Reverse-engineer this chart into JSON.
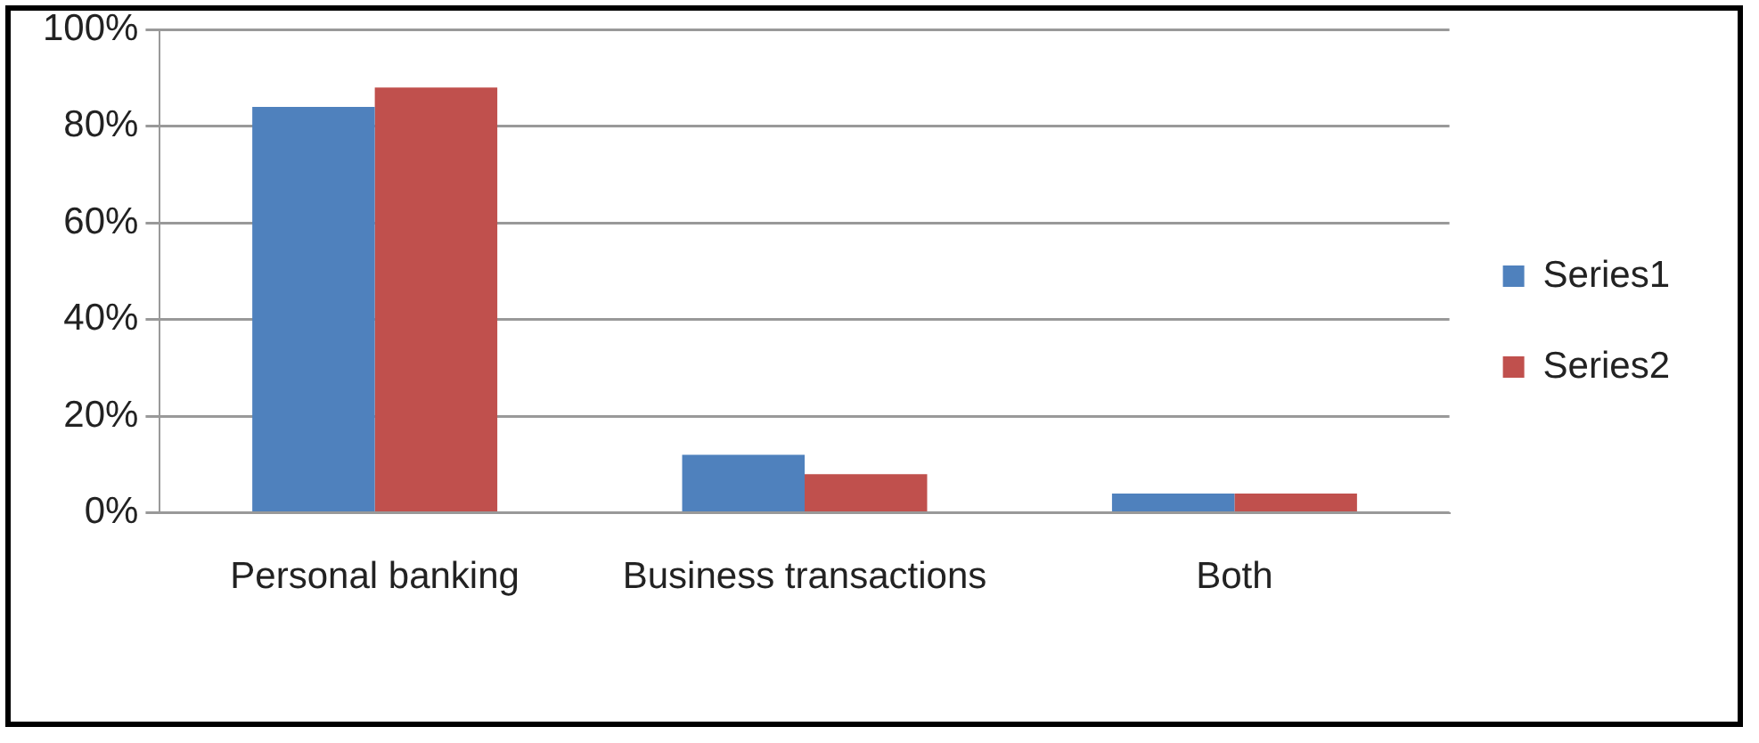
{
  "chart_data": {
    "type": "bar",
    "categories": [
      "Personal banking",
      "Business transactions",
      "Both"
    ],
    "series": [
      {
        "name": "Series1",
        "color": "#4f81bd",
        "values": [
          84,
          12,
          4
        ]
      },
      {
        "name": "Series2",
        "color": "#c0504d",
        "values": [
          88,
          8,
          4
        ]
      }
    ],
    "ylim": [
      0,
      100
    ],
    "yticks": [
      {
        "value": 0,
        "label": "0%"
      },
      {
        "value": 20,
        "label": "20%"
      },
      {
        "value": 40,
        "label": "40%"
      },
      {
        "value": 60,
        "label": "60%"
      },
      {
        "value": 80,
        "label": "80%"
      },
      {
        "value": 100,
        "label": "100%"
      }
    ],
    "grid": "y",
    "legend": "right"
  }
}
